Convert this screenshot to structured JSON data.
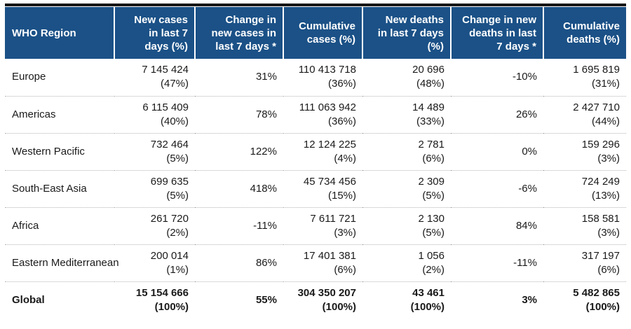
{
  "colors": {
    "header_background": "#1B5187",
    "header_text": "#ffffff",
    "top_rule": "#161616",
    "body_text": "#1a1a1a",
    "row_separator_dotted": "#b3b3b3"
  },
  "table": {
    "columns": [
      {
        "key": "region",
        "label": "WHO Region"
      },
      {
        "key": "new_cases",
        "label": "New cases\nin last 7\ndays (%)"
      },
      {
        "key": "change_new_cases",
        "label": "Change in\nnew cases in\nlast 7 days *"
      },
      {
        "key": "cumulative_cases",
        "label": "Cumulative\ncases (%)"
      },
      {
        "key": "new_deaths",
        "label": "New deaths\nin last 7 days\n(%)"
      },
      {
        "key": "change_new_deaths",
        "label": "Change in new\ndeaths in last\n7 days *"
      },
      {
        "key": "cumulative_deaths",
        "label": "Cumulative\ndeaths (%)"
      }
    ],
    "rows": [
      {
        "region": "Europe",
        "new_cases": "7 145 424",
        "new_cases_pct": "(47%)",
        "change_new_cases": "31%",
        "cumulative_cases": "110 413 718",
        "cumulative_cases_pct": "(36%)",
        "new_deaths": "20 696",
        "new_deaths_pct": "(48%)",
        "change_new_deaths": "-10%",
        "cumulative_deaths": "1 695 819",
        "cumulative_deaths_pct": "(31%)",
        "is_total": false
      },
      {
        "region": "Americas",
        "new_cases": "6 115 409",
        "new_cases_pct": "(40%)",
        "change_new_cases": "78%",
        "cumulative_cases": "111 063 942",
        "cumulative_cases_pct": "(36%)",
        "new_deaths": "14 489",
        "new_deaths_pct": "(33%)",
        "change_new_deaths": "26%",
        "cumulative_deaths": "2 427 710",
        "cumulative_deaths_pct": "(44%)",
        "is_total": false
      },
      {
        "region": "Western Pacific",
        "new_cases": "732 464",
        "new_cases_pct": "(5%)",
        "change_new_cases": "122%",
        "cumulative_cases": "12 124 225",
        "cumulative_cases_pct": "(4%)",
        "new_deaths": "2 781",
        "new_deaths_pct": "(6%)",
        "change_new_deaths": "0%",
        "cumulative_deaths": "159 296",
        "cumulative_deaths_pct": "(3%)",
        "is_total": false
      },
      {
        "region": "South-East Asia",
        "new_cases": "699 635",
        "new_cases_pct": "(5%)",
        "change_new_cases": "418%",
        "cumulative_cases": "45 734 456",
        "cumulative_cases_pct": "(15%)",
        "new_deaths": "2 309",
        "new_deaths_pct": "(5%)",
        "change_new_deaths": "-6%",
        "cumulative_deaths": "724 249",
        "cumulative_deaths_pct": "(13%)",
        "is_total": false
      },
      {
        "region": "Africa",
        "new_cases": "261 720",
        "new_cases_pct": "(2%)",
        "change_new_cases": "-11%",
        "cumulative_cases": "7 611 721",
        "cumulative_cases_pct": "(3%)",
        "new_deaths": "2 130",
        "new_deaths_pct": "(5%)",
        "change_new_deaths": "84%",
        "cumulative_deaths": "158 581",
        "cumulative_deaths_pct": "(3%)",
        "is_total": false
      },
      {
        "region": "Eastern Mediterranean",
        "new_cases": "200 014",
        "new_cases_pct": "(1%)",
        "change_new_cases": "86%",
        "cumulative_cases": "17 401 381",
        "cumulative_cases_pct": "(6%)",
        "new_deaths": "1 056",
        "new_deaths_pct": "(2%)",
        "change_new_deaths": "-11%",
        "cumulative_deaths": "317 197",
        "cumulative_deaths_pct": "(6%)",
        "is_total": false
      },
      {
        "region": "Global",
        "new_cases": "15 154 666",
        "new_cases_pct": "(100%)",
        "change_new_cases": "55%",
        "cumulative_cases": "304 350 207",
        "cumulative_cases_pct": "(100%)",
        "new_deaths": "43 461",
        "new_deaths_pct": "(100%)",
        "change_new_deaths": "3%",
        "cumulative_deaths": "5 482 865",
        "cumulative_deaths_pct": "(100%)",
        "is_total": true
      }
    ]
  }
}
